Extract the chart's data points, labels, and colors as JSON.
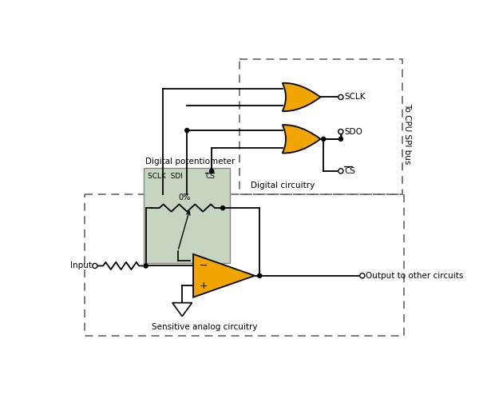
{
  "bg_color": "#ffffff",
  "gate_fill": "#f0a500",
  "gate_edge": "#000000",
  "dig_pot_fill": "#c5d5c0",
  "dig_pot_edge": "#888888",
  "opamp_fill": "#f0a500",
  "opamp_edge": "#000000",
  "dashed_box_color": "#666666",
  "line_color": "#000000",
  "label_color": "#000000",
  "text_digital_circuitry": "Digital circuitry",
  "text_sensitive_analog": "Sensitive analog circuitry",
  "text_digital_pot": "Digital potentiometer",
  "text_to_cpu": "To CPU SPI bus",
  "text_input": "Input",
  "text_output": "Output to other circuits",
  "text_sclk": "SCLK",
  "text_sdo": "SDO",
  "text_cs": "CS",
  "text_0pct": "0%"
}
